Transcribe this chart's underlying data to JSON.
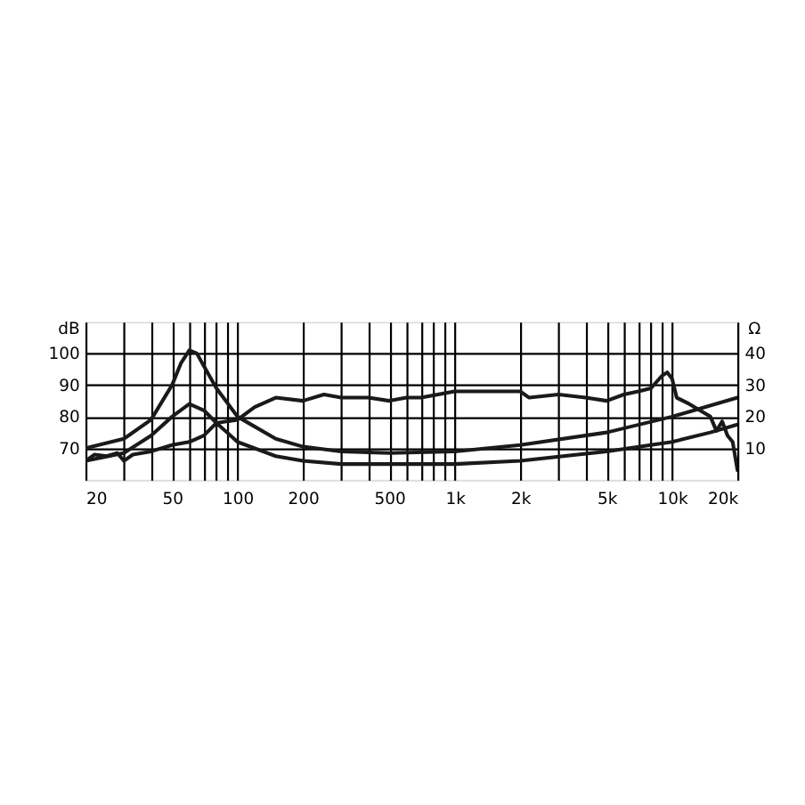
{
  "chart_data": {
    "type": "line",
    "ylabel": "dB",
    "y2label": "Ω",
    "log": "x",
    "grid": true,
    "xlim": [
      20,
      20000
    ],
    "ylim": [
      60,
      110
    ],
    "y2lim": [
      0,
      50
    ],
    "xticks": [
      20,
      {
        "value": 30,
        "label": null
      },
      {
        "value": 40,
        "label": null
      },
      50,
      {
        "value": 60,
        "label": null
      },
      {
        "value": 70,
        "label": null
      },
      {
        "value": 80,
        "label": null
      },
      {
        "value": 90,
        "label": null
      },
      100,
      200,
      {
        "value": 300,
        "label": null
      },
      {
        "value": 400,
        "label": null
      },
      500,
      {
        "value": 600,
        "label": null
      },
      {
        "value": 700,
        "label": null
      },
      {
        "value": 800,
        "label": null
      },
      {
        "value": 900,
        "label": null
      },
      {
        "value": 1000,
        "label": "1k"
      },
      {
        "value": 2000,
        "label": "2k"
      },
      {
        "value": 3000,
        "label": null
      },
      {
        "value": 4000,
        "label": null
      },
      {
        "value": 5000,
        "label": "5k"
      },
      {
        "value": 6000,
        "label": null
      },
      {
        "value": 7000,
        "label": null
      },
      {
        "value": 8000,
        "label": null
      },
      {
        "value": 9000,
        "label": null
      },
      {
        "value": 10000,
        "label": "10k"
      },
      {
        "value": 20000,
        "label": "20k"
      }
    ],
    "yticks": [
      70,
      80,
      90,
      100
    ],
    "y2ticks": [
      10,
      20,
      30,
      40
    ],
    "series": [
      {
        "color": "#1a1a1a",
        "x": [
          20,
          22,
          25,
          28,
          30,
          33,
          40,
          50,
          60,
          70,
          80,
          100,
          120,
          150,
          200,
          250,
          300,
          400,
          500,
          600,
          700,
          1000,
          1500,
          2000,
          2200,
          3000,
          4000,
          5000,
          6000,
          7000,
          8000,
          9000,
          9500,
          10000,
          10500,
          12000,
          15000,
          16000,
          17000,
          18000,
          19000,
          20000
        ],
        "values": [
          66,
          68,
          67.5,
          68.5,
          66,
          68,
          69,
          71,
          72,
          74,
          78,
          79,
          83,
          86,
          85,
          87,
          86,
          86,
          85,
          86,
          86,
          88,
          88,
          88,
          86,
          87,
          86,
          85,
          87,
          88,
          89,
          93,
          94,
          92,
          86,
          84,
          80,
          75.5,
          78.5,
          74,
          72,
          63
        ]
      },
      {
        "color": "#1a1a1a",
        "axis": "y2",
        "x": [
          20,
          30,
          40,
          50,
          55,
          60,
          65,
          70,
          80,
          100,
          150,
          200,
          300,
          500,
          1000,
          2000,
          5000,
          10000,
          20000
        ],
        "values": [
          10,
          13,
          19,
          30,
          37,
          41,
          40,
          36,
          29,
          20,
          13,
          10.5,
          9,
          8.5,
          9,
          11,
          15,
          20,
          26
        ]
      },
      {
        "color": "#1a1a1a",
        "axis": "y2",
        "x": [
          20,
          30,
          40,
          50,
          60,
          70,
          80,
          100,
          150,
          200,
          300,
          500,
          1000,
          2000,
          5000,
          10000,
          15000,
          20000
        ],
        "values": [
          6,
          8.5,
          14,
          20,
          24,
          22,
          18,
          12,
          7.5,
          6,
          5,
          5,
          5,
          6,
          9,
          12,
          15,
          17.5
        ]
      }
    ]
  }
}
